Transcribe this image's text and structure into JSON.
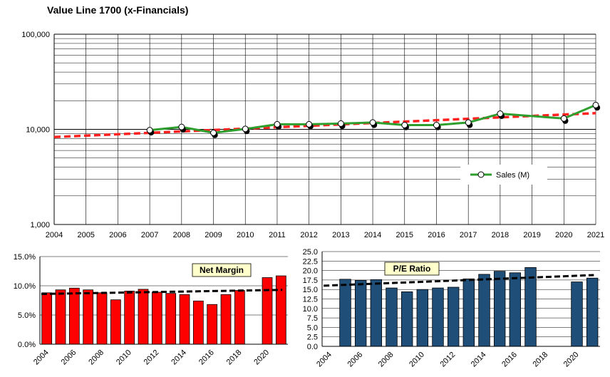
{
  "page": {
    "title": "Value Line 1700 (x-Financials)"
  },
  "chart_data": [
    {
      "type": "line",
      "title": "",
      "scale": "log",
      "x": [
        2004,
        2005,
        2006,
        2007,
        2008,
        2009,
        2010,
        2011,
        2012,
        2013,
        2014,
        2015,
        2016,
        2017,
        2018,
        2019,
        2020,
        2021
      ],
      "x_tick_labels": [
        "2004",
        "2005",
        "2006",
        "2007",
        "2008",
        "2009",
        "2010",
        "2011",
        "2012",
        "2013",
        "2014",
        "2015",
        "2016",
        "2017",
        "2018",
        "2019",
        "2020",
        "2021"
      ],
      "y_tick_labels": [
        "1,000",
        "10,000",
        "100,000"
      ],
      "ylim": [
        1000,
        100000
      ],
      "grid": true,
      "legend": "bottom-right",
      "series": [
        {
          "name": "Sales (M)",
          "color": "#2e9e2e",
          "points": [
            [
              2007,
              9800
            ],
            [
              2008,
              10600
            ],
            [
              2009,
              9200
            ],
            [
              2010,
              10100
            ],
            [
              2011,
              11300
            ],
            [
              2012,
              11300
            ],
            [
              2013,
              11500
            ],
            [
              2014,
              11800
            ],
            [
              2015,
              11100
            ],
            [
              2016,
              11100
            ],
            [
              2017,
              11800
            ],
            [
              2018,
              14600
            ],
            [
              2020,
              13000
            ],
            [
              2021,
              18000
            ]
          ]
        },
        {
          "name": "",
          "color": "#ff2020",
          "style": "dashed",
          "points": [
            [
              2004,
              8300
            ],
            [
              2021,
              14800
            ]
          ]
        }
      ],
      "black_markers": [
        [
          2007,
          9600
        ],
        [
          2008,
          10300
        ],
        [
          2009,
          9000
        ],
        [
          2010,
          9900
        ],
        [
          2011,
          11000
        ],
        [
          2012,
          11100
        ],
        [
          2013,
          11200
        ],
        [
          2014,
          11500
        ],
        [
          2015,
          10900
        ],
        [
          2016,
          10900
        ],
        [
          2017,
          11500
        ],
        [
          2018,
          14300
        ],
        [
          2020,
          12700
        ],
        [
          2021,
          17500
        ]
      ]
    },
    {
      "type": "bar",
      "title": "Net Margin",
      "x": [
        2004,
        2005,
        2006,
        2007,
        2008,
        2009,
        2010,
        2011,
        2012,
        2013,
        2014,
        2015,
        2016,
        2017,
        2018,
        2020,
        2021
      ],
      "values": [
        8.8,
        9.3,
        9.6,
        9.3,
        8.8,
        7.6,
        9.1,
        9.4,
        8.9,
        8.7,
        8.5,
        7.4,
        6.8,
        8.5,
        9.2,
        11.4,
        11.7
      ],
      "trend": [
        8.6,
        9.3
      ],
      "x_tick_labels": [
        "2004",
        "2006",
        "2008",
        "2010",
        "2012",
        "2014",
        "2016",
        "2018",
        "2020"
      ],
      "y_tick_labels": [
        "0.0%",
        "5.0%",
        "10.0%",
        "15.0%"
      ],
      "ylim": [
        0,
        15
      ],
      "bar_color": "#ff0000",
      "grid": true
    },
    {
      "type": "bar",
      "title": "P/E Ratio",
      "x": [
        2005,
        2006,
        2007,
        2008,
        2009,
        2010,
        2011,
        2012,
        2013,
        2014,
        2015,
        2016,
        2017,
        2020,
        2021
      ],
      "values": [
        17.7,
        17.4,
        17.6,
        15.4,
        14.4,
        15.0,
        15.4,
        15.6,
        17.8,
        19.0,
        19.8,
        19.4,
        20.8,
        17.0,
        18.0
      ],
      "trend": [
        16.0,
        18.8
      ],
      "x_tick_labels": [
        "2004",
        "2006",
        "2008",
        "2010",
        "2012",
        "2014",
        "2016",
        "2018",
        "2020"
      ],
      "y_tick_labels": [
        "0.0",
        "2.5",
        "5.0",
        "7.5",
        "10.0",
        "12.5",
        "15.0",
        "17.5",
        "20.0",
        "22.5",
        "25.0"
      ],
      "ylim": [
        0,
        25
      ],
      "bar_color": "#1f4e79",
      "grid": true
    }
  ]
}
